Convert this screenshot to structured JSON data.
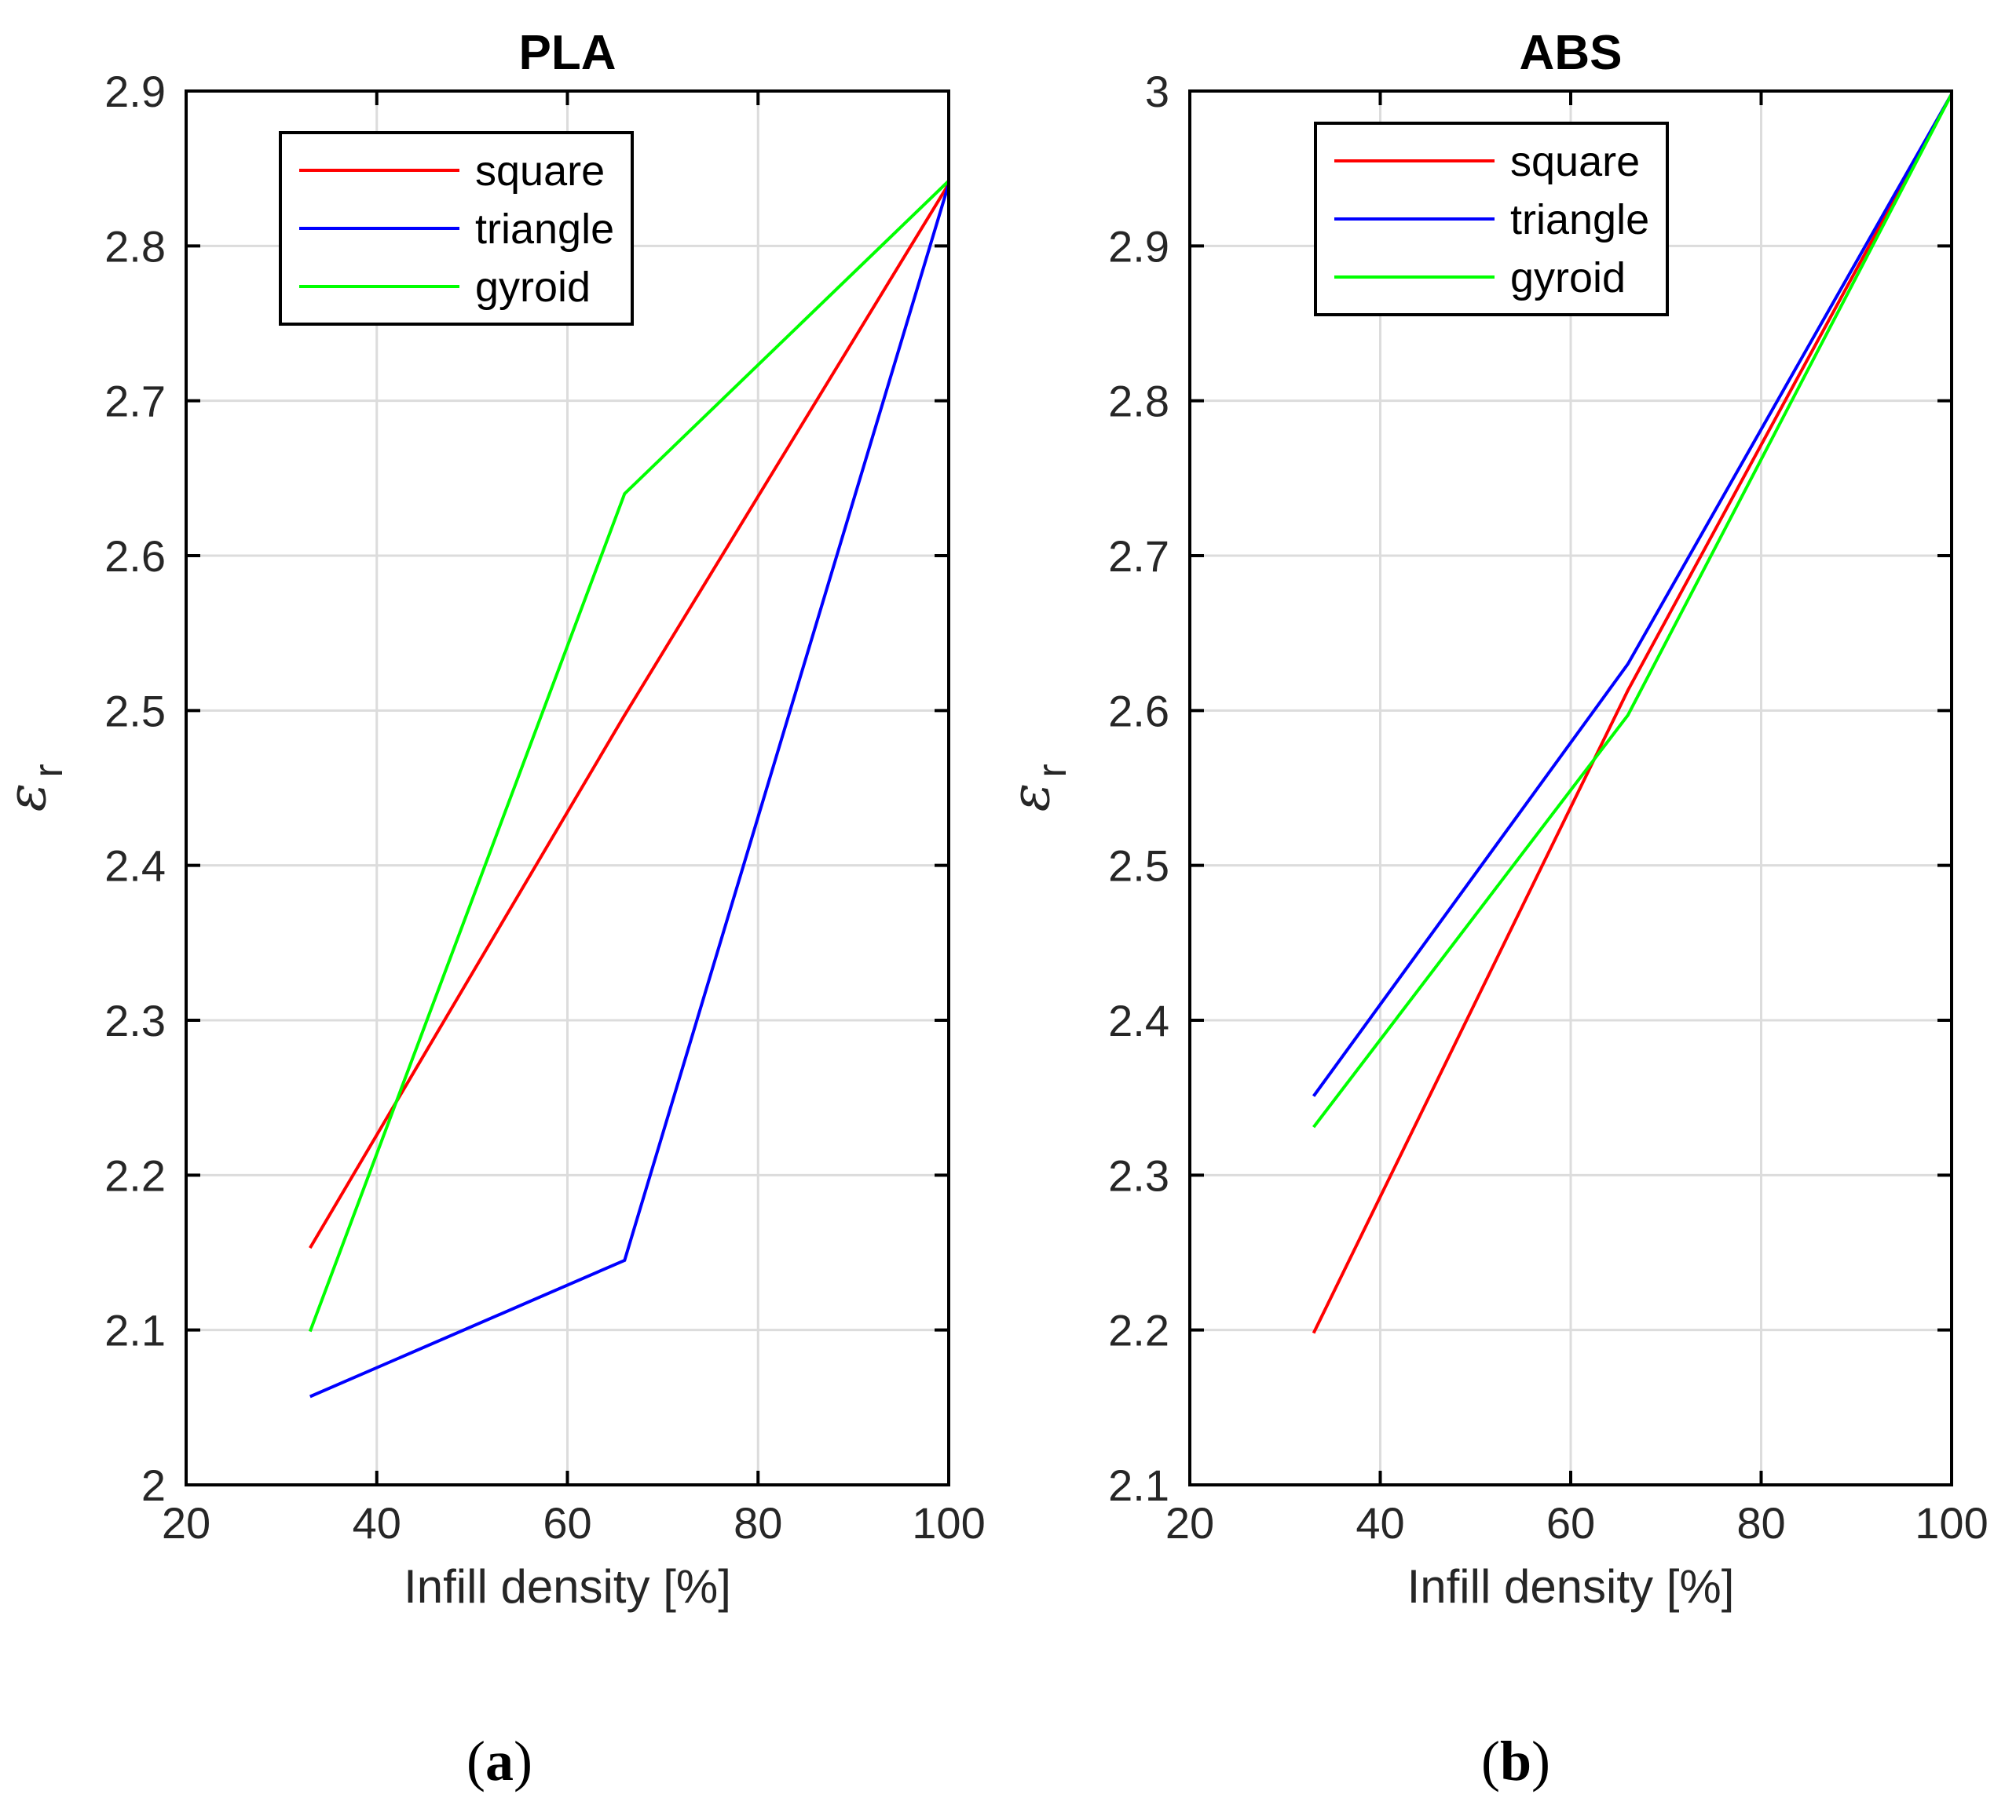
{
  "chart_data": [
    {
      "type": "line",
      "panel": "a",
      "title": "PLA",
      "caption": "a",
      "xlabel": "Infill density [%]",
      "ylabel_symbol": "ε",
      "ylabel_subscript": "r",
      "xlim": [
        20,
        100
      ],
      "ylim": [
        2.0,
        2.9
      ],
      "xticks": [
        20,
        40,
        60,
        80,
        100
      ],
      "yticks": [
        2.0,
        2.1,
        2.2,
        2.3,
        2.4,
        2.5,
        2.6,
        2.7,
        2.8,
        2.9
      ],
      "xtick_labels": [
        "20",
        "40",
        "60",
        "80",
        "100"
      ],
      "ytick_labels": [
        "2",
        "2.1",
        "2.2",
        "2.3",
        "2.4",
        "2.5",
        "2.6",
        "2.7",
        "2.8",
        "2.9"
      ],
      "grid": true,
      "legend": "top-left",
      "series": [
        {
          "name": "square",
          "color": "#ff0000",
          "x": [
            33,
            66,
            100
          ],
          "y": [
            2.153,
            2.497,
            2.84
          ]
        },
        {
          "name": "triangle",
          "color": "#0000ff",
          "x": [
            33,
            66,
            100
          ],
          "y": [
            2.057,
            2.145,
            2.84
          ]
        },
        {
          "name": "gyroid",
          "color": "#00ff00",
          "x": [
            33,
            66,
            100
          ],
          "y": [
            2.099,
            2.64,
            2.842
          ]
        }
      ]
    },
    {
      "type": "line",
      "panel": "b",
      "title": "ABS",
      "caption": "b",
      "xlabel": "Infill density [%]",
      "ylabel_symbol": "ε",
      "ylabel_subscript": "r",
      "xlim": [
        20,
        100
      ],
      "ylim": [
        2.1,
        3.0
      ],
      "xticks": [
        20,
        40,
        60,
        80,
        100
      ],
      "yticks": [
        2.1,
        2.2,
        2.3,
        2.4,
        2.5,
        2.6,
        2.7,
        2.8,
        2.9,
        3.0
      ],
      "xtick_labels": [
        "20",
        "40",
        "60",
        "80",
        "100"
      ],
      "ytick_labels": [
        "2.1",
        "2.2",
        "2.3",
        "2.4",
        "2.5",
        "2.6",
        "2.7",
        "2.8",
        "2.9",
        "3"
      ],
      "grid": true,
      "legend": "top-left",
      "series": [
        {
          "name": "square",
          "color": "#ff0000",
          "x": [
            33,
            66,
            100
          ],
          "y": [
            2.198,
            2.613,
            2.998
          ]
        },
        {
          "name": "triangle",
          "color": "#0000ff",
          "x": [
            33,
            66,
            100
          ],
          "y": [
            2.351,
            2.63,
            2.998
          ]
        },
        {
          "name": "gyroid",
          "color": "#00ff00",
          "x": [
            33,
            66,
            100
          ],
          "y": [
            2.331,
            2.597,
            2.998
          ]
        }
      ]
    }
  ]
}
